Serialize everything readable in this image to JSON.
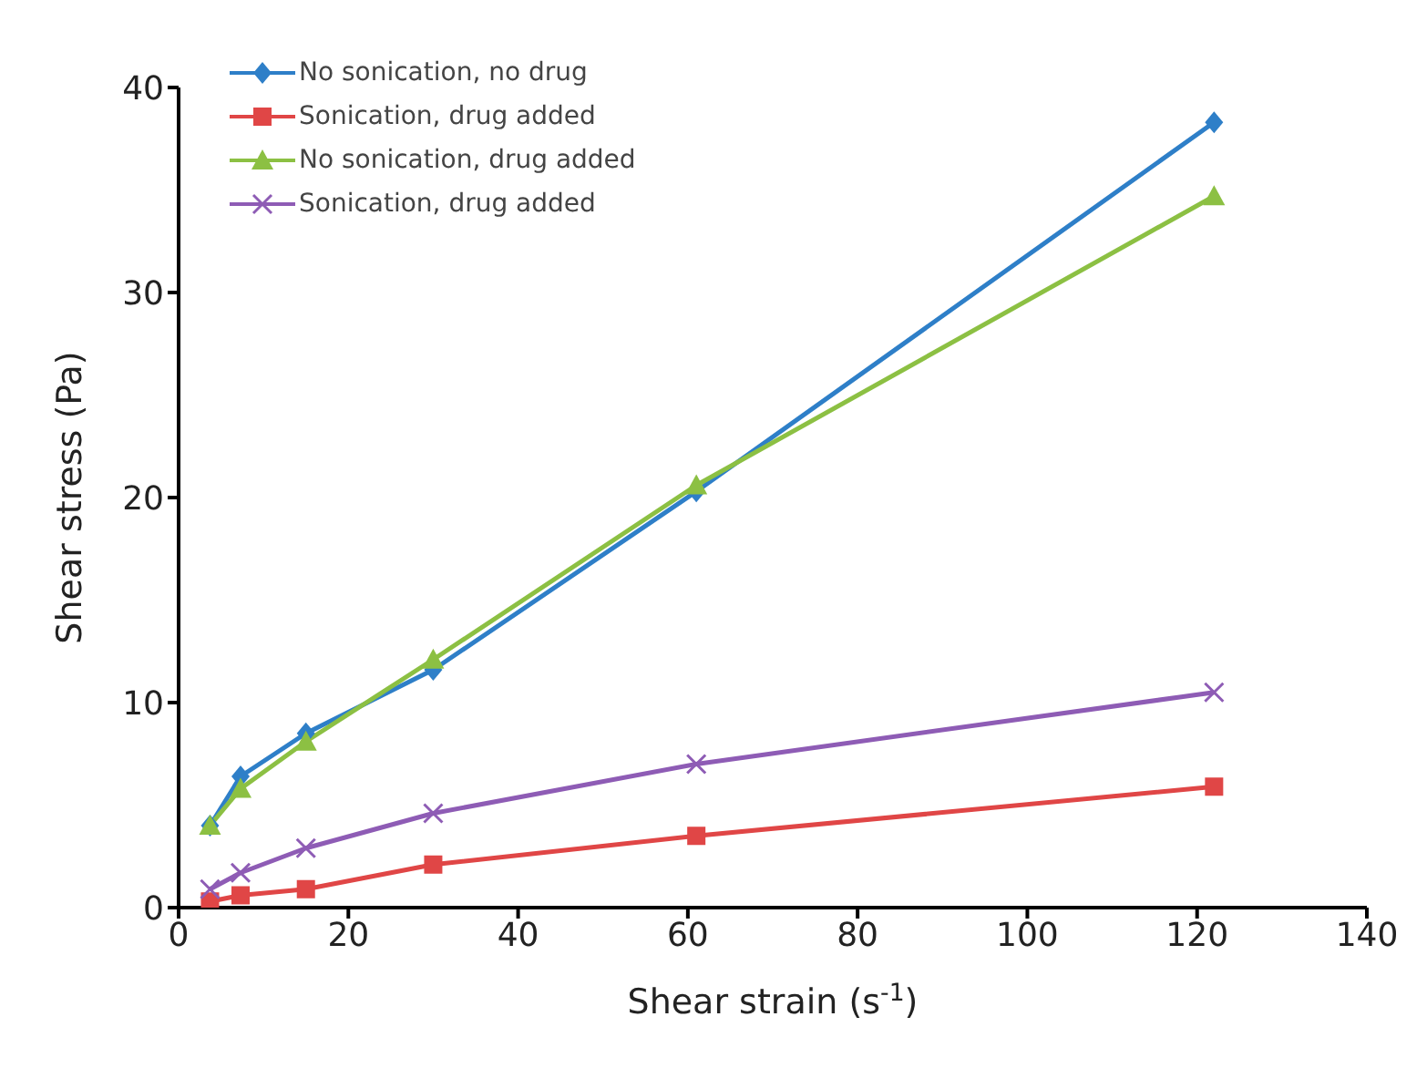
{
  "chart_data": {
    "type": "line",
    "xlabel": "Shear strain (s$^{-1}$)",
    "ylabel": "Shear stress (Pa)",
    "x": [
      3.7,
      7.3,
      15,
      30,
      61,
      122
    ],
    "series": [
      {
        "name": "No sonication, no drug",
        "color": "#2e7fc8",
        "marker": "diamond",
        "values": [
          4.0,
          6.4,
          8.5,
          11.6,
          20.3,
          38.3
        ]
      },
      {
        "name": "Sonication, drug added",
        "color": "#e04646",
        "marker": "square",
        "values": [
          0.3,
          0.6,
          0.9,
          2.1,
          3.5,
          5.9
        ]
      },
      {
        "name": "No sonication, drug added",
        "color": "#8cc043",
        "marker": "triangle",
        "values": [
          4.0,
          5.8,
          8.1,
          12.1,
          20.6,
          34.7
        ]
      },
      {
        "name": "Sonication, drug added",
        "color": "#8e5cb5",
        "marker": "cross",
        "values": [
          0.9,
          1.7,
          2.9,
          4.6,
          7.0,
          10.5
        ]
      }
    ],
    "xlim": [
      0,
      140
    ],
    "xticks": [
      0,
      20,
      40,
      60,
      80,
      100,
      120,
      140
    ],
    "ylim": [
      0,
      40
    ],
    "yticks": [
      0,
      10,
      20,
      30,
      40
    ],
    "grid": false,
    "legend": "top left"
  }
}
